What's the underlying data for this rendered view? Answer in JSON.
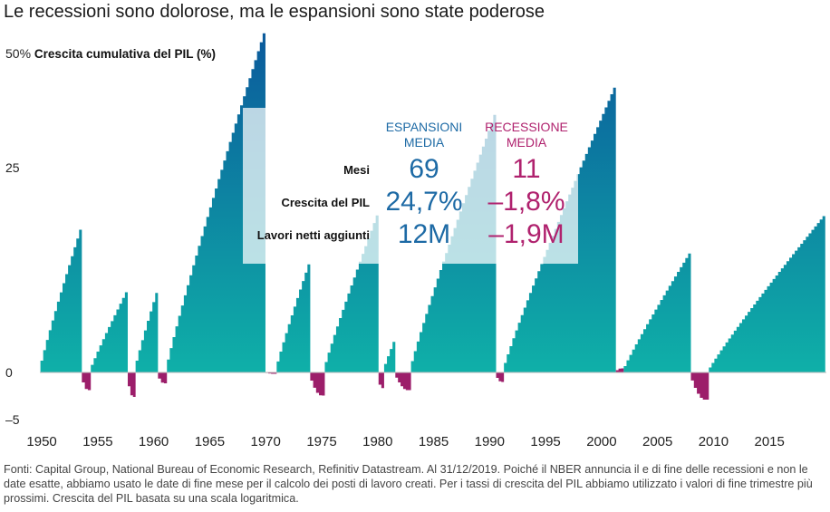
{
  "title": "Le recessioni sono dolorose, ma le espansioni sono state poderose",
  "footnote": "Fonti: Capital Group, National Bureau of Economic Research, Refinitiv Datastream. Al 31/12/2019. Poiché il NBER annuncia il e di fine delle recessioni e non le date esatte, abbiamo usato le date di fine mese per il calcolo dei posti di lavoro creati. Per i tassi di crescita del PIL abbiamo utilizzato i valori di fine trimestre più prossimi. Crescita del PIL basata su una scala logaritmica.",
  "colors": {
    "expansion_top": "#0b5a9c",
    "expansion_bottom": "#0fb0a8",
    "recession": "#9c1e6a",
    "accent_blue": "#1d6aa5",
    "accent_magenta": "#b0226e"
  },
  "chart_data": {
    "type": "area",
    "ylabel_prefix": "50%",
    "ylabel": "Crescita cumulativa del PIL (%)",
    "yticks": [
      "25",
      "0",
      "–5"
    ],
    "xticks": [
      "1950",
      "1955",
      "1960",
      "1965",
      "1970",
      "1975",
      "1980",
      "1985",
      "1990",
      "1995",
      "2000",
      "2005",
      "2010",
      "2015"
    ],
    "xlim": [
      1949.75,
      2020.0
    ],
    "ylim": [
      -5,
      50
    ],
    "series": [
      {
        "kind": "expansion",
        "start": 1949.8,
        "end": 1953.5,
        "peak": 21.0
      },
      {
        "kind": "recession",
        "start": 1953.5,
        "end": 1954.3,
        "peak": -2.6
      },
      {
        "kind": "expansion",
        "start": 1954.3,
        "end": 1957.6,
        "peak": 11.8
      },
      {
        "kind": "recession",
        "start": 1957.6,
        "end": 1958.3,
        "peak": -3.6
      },
      {
        "kind": "expansion",
        "start": 1958.3,
        "end": 1960.3,
        "peak": 11.7
      },
      {
        "kind": "recession",
        "start": 1960.3,
        "end": 1961.1,
        "peak": -1.6
      },
      {
        "kind": "expansion",
        "start": 1961.1,
        "end": 1969.9,
        "peak": 49.9
      },
      {
        "kind": "recession",
        "start": 1969.9,
        "end": 1970.9,
        "peak": -0.2
      },
      {
        "kind": "expansion",
        "start": 1970.9,
        "end": 1973.9,
        "peak": 15.9
      },
      {
        "kind": "recession",
        "start": 1973.9,
        "end": 1975.2,
        "peak": -3.4
      },
      {
        "kind": "expansion",
        "start": 1975.2,
        "end": 1980.0,
        "peak": 23.1
      },
      {
        "kind": "recession",
        "start": 1980.0,
        "end": 1980.5,
        "peak": -2.3
      },
      {
        "kind": "expansion",
        "start": 1980.5,
        "end": 1981.5,
        "peak": 4.5
      },
      {
        "kind": "recession",
        "start": 1981.5,
        "end": 1982.9,
        "peak": -2.6
      },
      {
        "kind": "expansion",
        "start": 1982.9,
        "end": 1990.5,
        "peak": 37.9
      },
      {
        "kind": "recession",
        "start": 1990.5,
        "end": 1991.2,
        "peak": -1.4
      },
      {
        "kind": "expansion",
        "start": 1991.2,
        "end": 2001.2,
        "peak": 41.9
      },
      {
        "kind": "recession",
        "start": 2001.2,
        "end": 2001.9,
        "peak": 0.6
      },
      {
        "kind": "expansion",
        "start": 2001.9,
        "end": 2007.9,
        "peak": 17.5
      },
      {
        "kind": "recession",
        "start": 2007.9,
        "end": 2009.5,
        "peak": -4.0
      },
      {
        "kind": "expansion",
        "start": 2009.5,
        "end": 2019.9,
        "peak": 23.0
      }
    ],
    "summary_box": {
      "col_expansion": [
        "ESPANSIONI",
        "MEDIA"
      ],
      "col_recession": [
        "RECESSIONE",
        "MEDIA"
      ],
      "rows": [
        {
          "label": "Mesi",
          "expansion": "69",
          "recession": "11"
        },
        {
          "label": "Crescita del PIL",
          "expansion": "24,7%",
          "recession": "–1,8%"
        },
        {
          "label": "Lavori netti aggiunti",
          "expansion": "12M",
          "recession": "–1,9M"
        }
      ]
    }
  }
}
